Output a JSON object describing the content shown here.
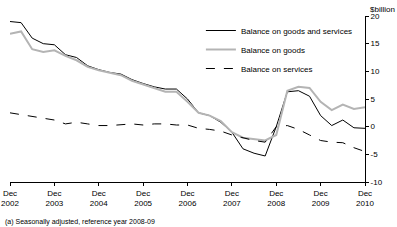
{
  "chart_data": {
    "type": "line",
    "y_label": "$billion",
    "footnote": "(a) Seasonally adjusted, reference year 2008-09",
    "categories": [
      "Dec 2002",
      null,
      null,
      null,
      "Dec 2003",
      null,
      null,
      null,
      "Dec 2004",
      null,
      null,
      null,
      "Dec 2005",
      null,
      null,
      null,
      "Dec 2006",
      null,
      null,
      null,
      "Dec 2007",
      null,
      null,
      null,
      "Dec 2008",
      null,
      null,
      null,
      "Dec 2009",
      null,
      null,
      null,
      "Dec 2010"
    ],
    "series": [
      {
        "name": "Balance on goods and services",
        "color": "#000000",
        "line_style": "solid",
        "values": [
          19,
          18.8,
          16,
          15,
          14.8,
          13,
          12.5,
          11,
          10.3,
          9.8,
          9.5,
          8.5,
          7.8,
          7.2,
          6.8,
          6.8,
          5,
          2.5,
          2,
          0.8,
          -1,
          -4,
          -4.8,
          -5.3,
          0,
          6.3,
          6.5,
          5.5,
          2,
          0.2,
          1.2,
          -0.2,
          -0.3
        ]
      },
      {
        "name": "Balance on goods",
        "color": "#b4b4b4",
        "line_style": "solid",
        "values": [
          16.8,
          17.2,
          14,
          13.5,
          13.8,
          12.8,
          12,
          10.8,
          10.2,
          9.8,
          9.3,
          8.3,
          7.6,
          7,
          6.3,
          6.3,
          4.5,
          2.5,
          2,
          1,
          -1,
          -2,
          -2.3,
          -2.5,
          -1.5,
          6.5,
          7.2,
          7,
          4.5,
          3,
          4,
          3.2,
          3.5
        ]
      },
      {
        "name": "Balance on services",
        "color": "#000000",
        "line_style": "dashed",
        "values": [
          2.5,
          2.2,
          1.8,
          1.5,
          1.2,
          0.5,
          0.8,
          0.5,
          0.2,
          0.2,
          0.3,
          0.5,
          0.3,
          0.5,
          0.5,
          0.3,
          0.3,
          -0.3,
          -0.5,
          -0.8,
          -1.5,
          -2,
          -2.5,
          -2.8,
          0,
          0.2,
          -0.5,
          -1.5,
          -2.5,
          -2.8,
          -2.9,
          -3.8,
          -4.5
        ]
      }
    ],
    "ylim": [
      -10,
      20
    ],
    "yticks": [
      -10,
      -5,
      0,
      5,
      10,
      15,
      20
    ],
    "grid": false,
    "legend": "upper right"
  }
}
